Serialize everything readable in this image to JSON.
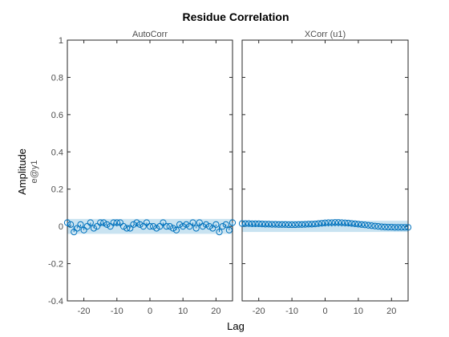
{
  "title": "Residue Correlation",
  "xlabel": "Lag",
  "ylabel": "Amplitude",
  "ylabel_sub": "e@y1",
  "colors": {
    "stem": "#0072bd",
    "band": "#c9e3f1",
    "axis": "#262626",
    "text": "#4d4d4d"
  },
  "chart_data": [
    {
      "type": "stem",
      "subtitle": "AutoCorr",
      "xlim": [
        -25,
        25
      ],
      "ylim": [
        -0.4,
        1
      ],
      "xticks": [
        -20,
        -10,
        0,
        10,
        20
      ],
      "yticks": [
        -0.4,
        -0.2,
        0,
        0.2,
        0.4,
        0.6,
        0.8,
        1
      ],
      "xticklabels": [
        "-20",
        "-10",
        "0",
        "10",
        "20"
      ],
      "yticklabels": [
        "-0.4",
        "-0.2",
        "0",
        "0.2",
        "0.4",
        "0.6",
        "0.8",
        "1"
      ],
      "confidence_band": [
        -0.04,
        0.04
      ],
      "x": [
        -25,
        -24,
        -23,
        -22,
        -21,
        -20,
        -19,
        -18,
        -17,
        -16,
        -15,
        -14,
        -13,
        -12,
        -11,
        -10,
        -9,
        -8,
        -7,
        -6,
        -5,
        -4,
        -3,
        -2,
        -1,
        0,
        1,
        2,
        3,
        4,
        5,
        6,
        7,
        8,
        9,
        10,
        11,
        12,
        13,
        14,
        15,
        16,
        17,
        18,
        19,
        20,
        21,
        22,
        23,
        24,
        25
      ],
      "y": [
        0.02,
        0.01,
        -0.03,
        -0.01,
        0.01,
        -0.02,
        0.0,
        0.02,
        -0.01,
        0.0,
        0.02,
        0.02,
        0.01,
        0.0,
        0.02,
        0.02,
        0.02,
        0.0,
        -0.01,
        -0.01,
        0.01,
        0.02,
        0.01,
        0.0,
        0.02,
        0.0,
        0.0,
        -0.01,
        0.0,
        0.02,
        0.0,
        0.0,
        -0.01,
        -0.02,
        0.01,
        0.0,
        0.01,
        0.0,
        0.02,
        -0.01,
        0.02,
        0.0,
        0.01,
        0.0,
        -0.01,
        0.01,
        -0.03,
        0.0,
        0.01,
        -0.02,
        0.02
      ]
    },
    {
      "type": "stem",
      "subtitle": "XCorr (u1)",
      "xlim": [
        -25,
        25
      ],
      "ylim": [
        -0.4,
        1
      ],
      "xticks": [
        -20,
        -10,
        0,
        10,
        20
      ],
      "yticks": [
        -0.4,
        -0.2,
        0,
        0.2,
        0.4,
        0.6,
        0.8,
        1
      ],
      "xticklabels": [
        "-20",
        "-10",
        "0",
        "10",
        "20"
      ],
      "yticklabels": [],
      "confidence_band": [
        -0.03,
        0.03
      ],
      "x": [
        -25,
        -24,
        -23,
        -22,
        -21,
        -20,
        -19,
        -18,
        -17,
        -16,
        -15,
        -14,
        -13,
        -12,
        -11,
        -10,
        -9,
        -8,
        -7,
        -6,
        -5,
        -4,
        -3,
        -2,
        -1,
        0,
        1,
        2,
        3,
        4,
        5,
        6,
        7,
        8,
        9,
        10,
        11,
        12,
        13,
        14,
        15,
        16,
        17,
        18,
        19,
        20,
        21,
        22,
        23,
        24,
        25
      ],
      "y": [
        0.015,
        0.015,
        0.015,
        0.014,
        0.014,
        0.014,
        0.013,
        0.012,
        0.012,
        0.011,
        0.011,
        0.01,
        0.01,
        0.01,
        0.009,
        0.009,
        0.009,
        0.01,
        0.01,
        0.011,
        0.012,
        0.012,
        0.013,
        0.015,
        0.017,
        0.019,
        0.02,
        0.02,
        0.021,
        0.021,
        0.02,
        0.019,
        0.018,
        0.016,
        0.014,
        0.012,
        0.01,
        0.008,
        0.006,
        0.004,
        0.002,
        0.0,
        -0.002,
        -0.003,
        -0.004,
        -0.004,
        -0.005,
        -0.005,
        -0.005,
        -0.005,
        -0.005
      ]
    }
  ]
}
